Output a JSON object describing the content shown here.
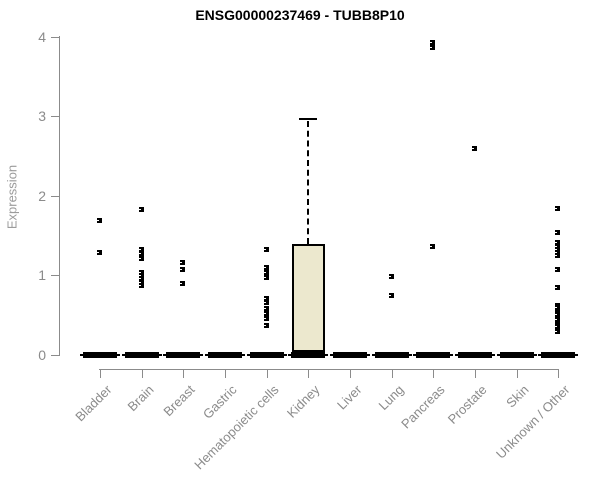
{
  "chart_data": {
    "type": "boxplot",
    "title": "ENSG00000237469 - TUBB8P10",
    "xlabel": "",
    "ylabel": "Expression",
    "ylim": [
      0,
      4
    ],
    "yticks": [
      0,
      1,
      2,
      3,
      4
    ],
    "x_label_rotation": 45,
    "grid": false,
    "legend": false,
    "colors": {
      "axis": "#8b8b8b",
      "tick_text": "#8b8b8b",
      "title_text": "#000000",
      "box_fill": "#ece8ce",
      "box_border": "#000000",
      "marker": "#000000"
    },
    "categories": [
      "Bladder",
      "Brain",
      "Breast",
      "Gastric",
      "Hematopoietic cells",
      "Kidney",
      "Liver",
      "Lung",
      "Pancreas",
      "Prostate",
      "Skin",
      "Unknown / Other"
    ],
    "series": [
      {
        "category": "Bladder",
        "box": {
          "whisker_low": 0,
          "q1": 0,
          "median": 0,
          "q3": 0,
          "whisker_high": 0
        },
        "outliers": [
          1.69,
          1.29
        ]
      },
      {
        "category": "Brain",
        "box": {
          "whisker_low": 0,
          "q1": 0,
          "median": 0,
          "q3": 0,
          "whisker_high": 0
        },
        "outliers": [
          1.84,
          1.33,
          1.28,
          1.25,
          1.22,
          1.04,
          1.0,
          0.97,
          0.92,
          0.88
        ]
      },
      {
        "category": "Breast",
        "box": {
          "whisker_low": 0,
          "q1": 0,
          "median": 0,
          "q3": 0,
          "whisker_high": 0
        },
        "outliers": [
          1.17,
          1.08,
          0.9
        ]
      },
      {
        "category": "Gastric",
        "box": {
          "whisker_low": 0,
          "q1": 0,
          "median": 0,
          "q3": 0,
          "whisker_high": 0
        },
        "outliers": []
      },
      {
        "category": "Hematopoietic cells",
        "box": {
          "whisker_low": 0,
          "q1": 0,
          "median": 0,
          "q3": 0,
          "whisker_high": 0
        },
        "outliers": [
          1.33,
          1.1,
          1.04,
          0.98,
          0.72,
          0.66,
          0.59,
          0.53,
          0.46,
          0.38
        ]
      },
      {
        "category": "Kidney",
        "box": {
          "whisker_low": 0,
          "q1": 0.02,
          "median": 0.02,
          "q3": 1.4,
          "whisker_high": 2.96
        },
        "outliers": []
      },
      {
        "category": "Liver",
        "box": {
          "whisker_low": 0,
          "q1": 0,
          "median": 0,
          "q3": 0,
          "whisker_high": 0
        },
        "outliers": []
      },
      {
        "category": "Lung",
        "box": {
          "whisker_low": 0,
          "q1": 0,
          "median": 0,
          "q3": 0,
          "whisker_high": 0
        },
        "outliers": [
          0.99,
          0.76
        ]
      },
      {
        "category": "Pancreas",
        "box": {
          "whisker_low": 0,
          "q1": 0,
          "median": 0,
          "q3": 0,
          "whisker_high": 0
        },
        "outliers": [
          3.93,
          3.87,
          1.37
        ]
      },
      {
        "category": "Prostate",
        "box": {
          "whisker_low": 0,
          "q1": 0,
          "median": 0,
          "q3": 0,
          "whisker_high": 0
        },
        "outliers": [
          2.6
        ]
      },
      {
        "category": "Skin",
        "box": {
          "whisker_low": 0,
          "q1": 0,
          "median": 0,
          "q3": 0,
          "whisker_high": 0
        },
        "outliers": []
      },
      {
        "category": "Unknown / Other",
        "box": {
          "whisker_low": 0,
          "q1": 0,
          "median": 0,
          "q3": 0,
          "whisker_high": 0
        },
        "outliers": [
          1.85,
          1.55,
          1.42,
          1.37,
          1.33,
          1.29,
          1.26,
          1.08,
          0.86,
          0.63,
          0.6,
          0.57,
          0.54,
          0.51,
          0.48,
          0.45,
          0.42,
          0.39,
          0.36,
          0.33,
          0.3
        ]
      }
    ]
  }
}
